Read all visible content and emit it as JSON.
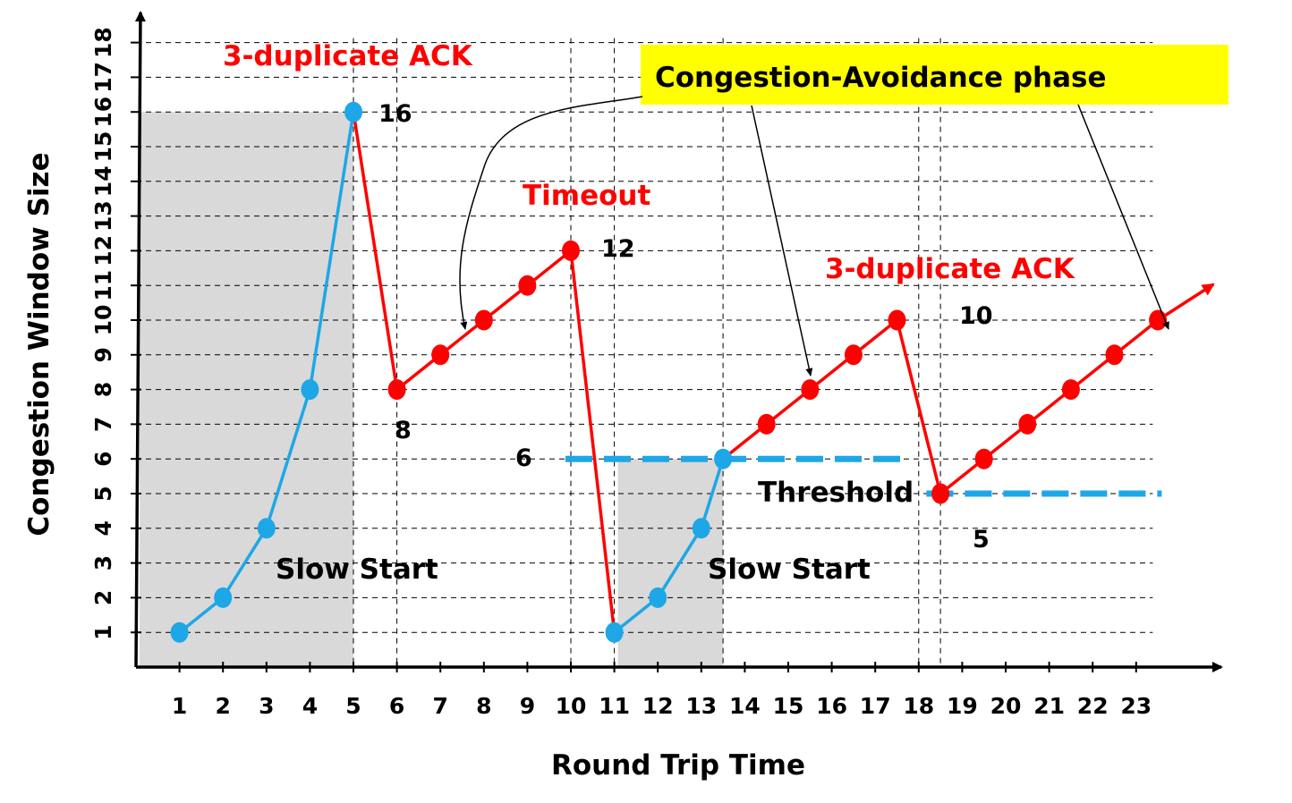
{
  "chart_data": {
    "type": "line",
    "title": "",
    "xlabel": "Round Trip Time",
    "ylabel": "Congestion Window Size",
    "x_ticks": [
      "1",
      "2",
      "3",
      "4",
      "5",
      "6",
      "7",
      "8",
      "9",
      "10",
      "11",
      "12",
      "13",
      "14",
      "15",
      "16",
      "17",
      "18",
      "19",
      "20",
      "21",
      "22",
      "23"
    ],
    "y_ticks": [
      "1",
      "2",
      "3",
      "4",
      "5",
      "6",
      "7",
      "8",
      "9",
      "10",
      "11",
      "12",
      "13",
      "14",
      "15",
      "16",
      "17",
      "18"
    ],
    "xlim": [
      0,
      24
    ],
    "ylim": [
      0,
      18
    ],
    "grid": true,
    "colors": {
      "slow_start": "#1ea7e6",
      "congestion_avoidance": "#ff0000",
      "shade": "#d9d9d9",
      "highlight": "#ffff00"
    },
    "segments": [
      {
        "phase": "slow_start",
        "points": [
          [
            1,
            1
          ],
          [
            2,
            2
          ],
          [
            3,
            4
          ],
          [
            4,
            8
          ],
          [
            5,
            16
          ]
        ]
      },
      {
        "phase": "drop",
        "points": [
          [
            5,
            16
          ],
          [
            6,
            8
          ]
        ]
      },
      {
        "phase": "congestion_avoidance",
        "points": [
          [
            6,
            8
          ],
          [
            7,
            9
          ],
          [
            8,
            10
          ],
          [
            9,
            11
          ],
          [
            10,
            12
          ]
        ]
      },
      {
        "phase": "drop",
        "points": [
          [
            10,
            12
          ],
          [
            11,
            1
          ]
        ]
      },
      {
        "phase": "slow_start",
        "points": [
          [
            11,
            1
          ],
          [
            12,
            2
          ],
          [
            13,
            4
          ],
          [
            13.5,
            6
          ]
        ]
      },
      {
        "phase": "congestion_avoidance",
        "points": [
          [
            13.5,
            6
          ],
          [
            14.5,
            7
          ],
          [
            15.5,
            8
          ],
          [
            16.5,
            9
          ],
          [
            17.5,
            10
          ]
        ]
      },
      {
        "phase": "drop",
        "points": [
          [
            17.5,
            10
          ],
          [
            18.5,
            5
          ]
        ]
      },
      {
        "phase": "congestion_avoidance",
        "points": [
          [
            18.5,
            5
          ],
          [
            19.5,
            6
          ],
          [
            20.5,
            7
          ],
          [
            21.5,
            8
          ],
          [
            22.5,
            9
          ],
          [
            23.5,
            10
          ]
        ]
      }
    ],
    "thresholds": [
      {
        "value": 6,
        "from": 10,
        "to": 18
      },
      {
        "value": 5,
        "from": 18.3,
        "to": 24
      }
    ],
    "shaded_regions": [
      {
        "from": 0,
        "to": 5,
        "top": 16
      },
      {
        "from": 11,
        "to": 13.5,
        "top": 6
      }
    ],
    "annotations": [
      {
        "key": "dup_ack_1",
        "text": "3-duplicate ACK",
        "color": "#ff0000"
      },
      {
        "key": "timeout",
        "text": "Timeout",
        "color": "#ff0000"
      },
      {
        "key": "dup_ack_2",
        "text": "3-duplicate ACK",
        "color": "#ff0000"
      },
      {
        "key": "ca_phase",
        "text": "Congestion-Avoidance phase",
        "color": "#000000"
      },
      {
        "key": "slow_start_1",
        "text": "Slow Start",
        "color": "#000000"
      },
      {
        "key": "slow_start_2",
        "text": "Slow Start",
        "color": "#000000"
      },
      {
        "key": "threshold",
        "text": "Threshold",
        "color": "#000000"
      }
    ],
    "value_labels": [
      "16",
      "8",
      "12",
      "6",
      "10",
      "5"
    ]
  }
}
